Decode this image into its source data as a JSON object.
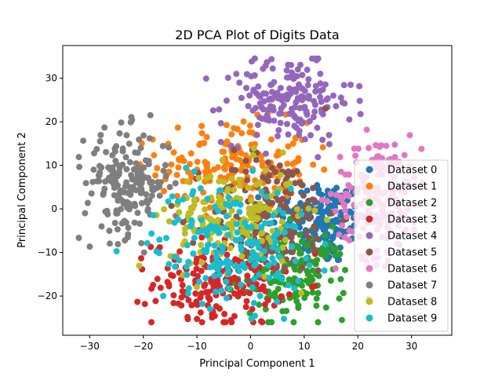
{
  "chart_data": {
    "type": "scatter",
    "title": "2D PCA Plot of Digits Data",
    "xlabel": "Principal Component 1",
    "ylabel": "Principal Component 2",
    "xlim": [
      -35,
      37.5
    ],
    "ylim": [
      -29,
      37.5
    ],
    "xticks": [
      -30,
      -20,
      -10,
      0,
      10,
      20,
      30
    ],
    "yticks": [
      -20,
      -10,
      0,
      10,
      20,
      30
    ],
    "grid": false,
    "legend_position": "lower right",
    "series": [
      {
        "name": "Dataset 0",
        "color": "#1f77b4",
        "center": [
          13,
          -3
        ],
        "spread": [
          4.5,
          5
        ],
        "count": 175
      },
      {
        "name": "Dataset 1",
        "color": "#ff7f0e",
        "center": [
          -3,
          10
        ],
        "spread": [
          7,
          5
        ],
        "count": 180
      },
      {
        "name": "Dataset 2",
        "color": "#2ca02c",
        "center": [
          8,
          -15
        ],
        "spread": [
          5,
          5
        ],
        "count": 175
      },
      {
        "name": "Dataset 3",
        "color": "#d62728",
        "center": [
          -6,
          -17
        ],
        "spread": [
          6,
          5
        ],
        "count": 180
      },
      {
        "name": "Dataset 4",
        "color": "#9467bd",
        "center": [
          7,
          25
        ],
        "spread": [
          6,
          5
        ],
        "count": 180
      },
      {
        "name": "Dataset 5",
        "color": "#8c564b",
        "center": [
          4,
          -1
        ],
        "spread": [
          6,
          7
        ],
        "count": 180
      },
      {
        "name": "Dataset 6",
        "color": "#e377c2",
        "center": [
          24,
          3
        ],
        "spread": [
          4,
          7
        ],
        "count": 180
      },
      {
        "name": "Dataset 7",
        "color": "#7f7f7f",
        "center": [
          -23,
          6
        ],
        "spread": [
          4,
          6
        ],
        "count": 180
      },
      {
        "name": "Dataset 8",
        "color": "#bcbd22",
        "center": [
          -3,
          -2
        ],
        "spread": [
          6,
          6
        ],
        "count": 175
      },
      {
        "name": "Dataset 9",
        "color": "#17becf",
        "center": [
          -4,
          -8
        ],
        "spread": [
          7,
          7
        ],
        "count": 180
      }
    ]
  }
}
